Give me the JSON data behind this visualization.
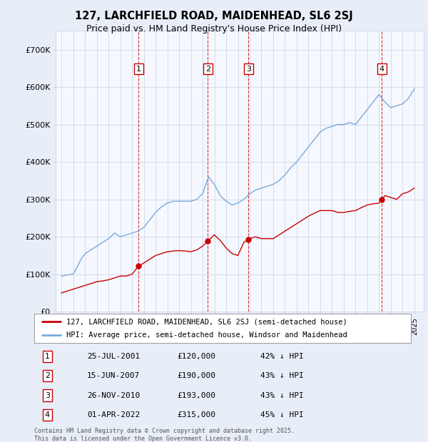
{
  "title": "127, LARCHFIELD ROAD, MAIDENHEAD, SL6 2SJ",
  "subtitle": "Price paid vs. HM Land Registry's House Price Index (HPI)",
  "ylim": [
    0,
    750000
  ],
  "yticks": [
    0,
    100000,
    200000,
    300000,
    400000,
    500000,
    600000,
    700000
  ],
  "ytick_labels": [
    "£0",
    "£100K",
    "£200K",
    "£300K",
    "£400K",
    "£500K",
    "£600K",
    "£700K"
  ],
  "bg_color": "#e8eef8",
  "plot_bg_color": "#f5f8ff",
  "grid_color": "#c8d0e0",
  "red_color": "#cc0000",
  "blue_color": "#7aaadd",
  "sale_dates": [
    2001.56,
    2007.45,
    2010.9,
    2022.25
  ],
  "sale_labels": [
    "1",
    "2",
    "3",
    "4"
  ],
  "vline_color": "#cc0000",
  "legend_entries": [
    "127, LARCHFIELD ROAD, MAIDENHEAD, SL6 2SJ (semi-detached house)",
    "HPI: Average price, semi-detached house, Windsor and Maidenhead"
  ],
  "table_data": [
    [
      "1",
      "25-JUL-2001",
      "£120,000",
      "42% ↓ HPI"
    ],
    [
      "2",
      "15-JUN-2007",
      "£190,000",
      "43% ↓ HPI"
    ],
    [
      "3",
      "26-NOV-2010",
      "£193,000",
      "43% ↓ HPI"
    ],
    [
      "4",
      "01-APR-2022",
      "£315,000",
      "45% ↓ HPI"
    ]
  ],
  "footnote": "Contains HM Land Registry data © Crown copyright and database right 2025.\nThis data is licensed under the Open Government Licence v3.0.",
  "hpi_x": [
    1995.0,
    1995.08,
    1995.17,
    1995.25,
    1995.33,
    1995.42,
    1995.5,
    1995.58,
    1995.67,
    1995.75,
    1995.83,
    1995.92,
    1996.0,
    1996.08,
    1996.17,
    1996.25,
    1996.33,
    1996.42,
    1996.5,
    1996.58,
    1996.67,
    1996.75,
    1996.83,
    1996.92,
    1997.0,
    1997.5,
    1998.0,
    1998.5,
    1999.0,
    1999.5,
    2000.0,
    2000.5,
    2001.0,
    2001.5,
    2002.0,
    2002.5,
    2003.0,
    2003.5,
    2004.0,
    2004.5,
    2005.0,
    2005.5,
    2006.0,
    2006.5,
    2007.0,
    2007.5,
    2008.0,
    2008.5,
    2009.0,
    2009.5,
    2010.0,
    2010.5,
    2011.0,
    2011.5,
    2012.0,
    2012.5,
    2013.0,
    2013.5,
    2014.0,
    2014.5,
    2015.0,
    2015.5,
    2016.0,
    2016.5,
    2017.0,
    2017.5,
    2018.0,
    2018.5,
    2019.0,
    2019.5,
    2020.0,
    2020.5,
    2021.0,
    2021.5,
    2022.0,
    2022.5,
    2023.0,
    2023.5,
    2024.0,
    2024.5,
    2025.0
  ],
  "hpi_y": [
    95000,
    95500,
    96000,
    96500,
    97000,
    97500,
    98000,
    98500,
    99000,
    99500,
    100000,
    100500,
    101000,
    105000,
    110000,
    115000,
    120000,
    125000,
    130000,
    135000,
    140000,
    145000,
    148000,
    150000,
    155000,
    165000,
    175000,
    185000,
    195000,
    210000,
    200000,
    205000,
    210000,
    215000,
    225000,
    245000,
    265000,
    280000,
    290000,
    295000,
    295000,
    295000,
    295000,
    300000,
    315000,
    360000,
    340000,
    310000,
    295000,
    285000,
    290000,
    300000,
    315000,
    325000,
    330000,
    335000,
    340000,
    350000,
    365000,
    385000,
    400000,
    420000,
    440000,
    460000,
    480000,
    490000,
    495000,
    500000,
    500000,
    505000,
    500000,
    520000,
    540000,
    560000,
    580000,
    560000,
    545000,
    550000,
    555000,
    570000,
    595000
  ],
  "red_x": [
    1995.0,
    1995.5,
    1996.0,
    1996.5,
    1997.0,
    1997.5,
    1998.0,
    1998.5,
    1999.0,
    1999.5,
    2000.0,
    2000.5,
    2001.0,
    2001.5,
    2002.0,
    2002.5,
    2003.0,
    2003.5,
    2004.0,
    2004.5,
    2005.0,
    2005.5,
    2006.0,
    2006.5,
    2007.0,
    2007.5,
    2008.0,
    2008.5,
    2009.0,
    2009.5,
    2010.0,
    2010.5,
    2011.0,
    2011.5,
    2012.0,
    2012.5,
    2013.0,
    2013.5,
    2014.0,
    2014.5,
    2015.0,
    2015.5,
    2016.0,
    2016.5,
    2017.0,
    2017.5,
    2018.0,
    2018.5,
    2019.0,
    2019.5,
    2020.0,
    2020.5,
    2021.0,
    2021.5,
    2022.0,
    2022.5,
    2023.0,
    2023.5,
    2024.0,
    2024.5,
    2025.0
  ],
  "red_y": [
    50000,
    55000,
    60000,
    65000,
    70000,
    75000,
    80000,
    82000,
    85000,
    90000,
    95000,
    95000,
    100000,
    120000,
    130000,
    140000,
    150000,
    155000,
    160000,
    162000,
    163000,
    162000,
    160000,
    165000,
    175000,
    190000,
    205000,
    190000,
    170000,
    155000,
    150000,
    185000,
    195000,
    200000,
    195000,
    195000,
    195000,
    205000,
    215000,
    225000,
    235000,
    245000,
    255000,
    263000,
    270000,
    270000,
    270000,
    265000,
    265000,
    268000,
    270000,
    278000,
    285000,
    288000,
    290000,
    310000,
    305000,
    300000,
    315000,
    320000,
    330000
  ]
}
